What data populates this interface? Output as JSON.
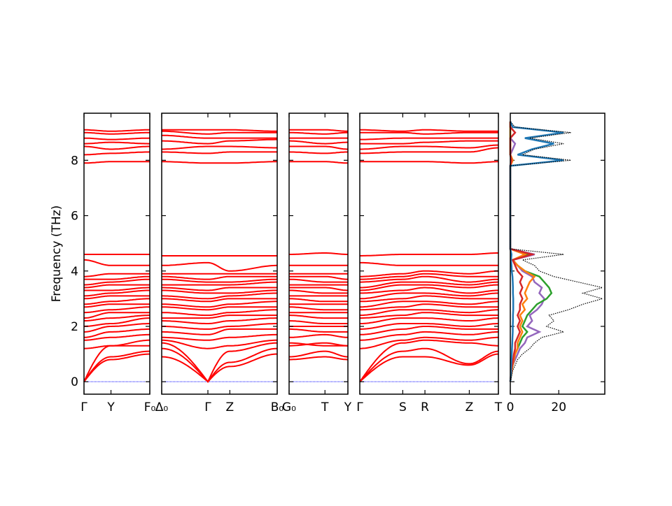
{
  "chart_data": {
    "type": "line",
    "title": "",
    "ylabel": "Frequency (THz)",
    "ylim": [
      -0.45,
      9.7
    ],
    "yticks": [
      0,
      2,
      4,
      6,
      8
    ],
    "colors": {
      "band": "#ff0000",
      "zero_line": "#0000ff",
      "dos_total": "#000000",
      "dos_series": [
        "#1f77b4",
        "#ff7f0e",
        "#2ca02c",
        "#d62728",
        "#9467bd"
      ]
    },
    "segments": [
      {
        "labels": [
          "Γ",
          "Y",
          "F₀"
        ],
        "positions": [
          0,
          0.41,
          1
        ]
      },
      {
        "labels": [
          "Δ₀",
          "Γ",
          "Z",
          "B₀"
        ],
        "positions": [
          0,
          0.4,
          0.59,
          1
        ]
      },
      {
        "labels": [
          "G₀",
          "T",
          "Y"
        ],
        "positions": [
          0,
          0.61,
          1
        ]
      },
      {
        "labels": [
          "Γ",
          "S",
          "R",
          "Z",
          "T"
        ],
        "positions": [
          0,
          0.31,
          0.47,
          0.79,
          1
        ]
      }
    ],
    "bands_note": "frequency (THz) at each high-symmetry point, in order Γ,Y,F₀ | Δ₀,Γ,Z,B₀ | G₀,T,Y | Γ,S,R,Z,T",
    "bands": [
      [
        0,
        0.8,
        1.0,
        0.9,
        0,
        0.55,
        1.0,
        0.8,
        0.9,
        0.8,
        0,
        0.9,
        0.9,
        0.6,
        1.0
      ],
      [
        0,
        0.9,
        1.1,
        1.2,
        0,
        0.7,
        1.2,
        0.9,
        1.1,
        0.9,
        0,
        1.1,
        1.2,
        0.65,
        1.1
      ],
      [
        0,
        1.3,
        1.3,
        1.4,
        0,
        1.1,
        1.4,
        1.3,
        1.4,
        1.3,
        0,
        1.4,
        1.5,
        1.4,
        1.3
      ],
      [
        1.2,
        1.3,
        1.5,
        1.5,
        1.2,
        1.3,
        1.5,
        1.4,
        1.3,
        1.3,
        1.2,
        1.5,
        1.6,
        1.5,
        1.6
      ],
      [
        1.5,
        1.6,
        1.7,
        1.6,
        1.5,
        1.6,
        1.7,
        1.6,
        1.7,
        1.6,
        1.5,
        1.7,
        1.8,
        1.7,
        1.8
      ],
      [
        1.6,
        1.8,
        1.9,
        1.8,
        1.7,
        1.9,
        1.9,
        1.9,
        1.8,
        1.8,
        1.7,
        1.9,
        2.0,
        1.9,
        1.9
      ],
      [
        1.8,
        2.0,
        2.1,
        2.0,
        1.9,
        2.0,
        2.1,
        2.0,
        2.0,
        2.0,
        1.9,
        2.1,
        2.1,
        2.0,
        2.1
      ],
      [
        2.0,
        2.1,
        2.3,
        2.2,
        2.1,
        2.2,
        2.3,
        2.2,
        2.1,
        2.1,
        2.1,
        2.3,
        2.3,
        2.2,
        2.3
      ],
      [
        2.2,
        2.3,
        2.4,
        2.3,
        2.3,
        2.4,
        2.4,
        2.4,
        2.3,
        2.3,
        2.3,
        2.4,
        2.5,
        2.4,
        2.4
      ],
      [
        2.3,
        2.5,
        2.5,
        2.5,
        2.4,
        2.5,
        2.6,
        2.5,
        2.5,
        2.5,
        2.4,
        2.6,
        2.6,
        2.5,
        2.6
      ],
      [
        2.5,
        2.6,
        2.7,
        2.7,
        2.6,
        2.7,
        2.7,
        2.7,
        2.6,
        2.6,
        2.6,
        2.7,
        2.8,
        2.7,
        2.7
      ],
      [
        2.7,
        2.8,
        2.8,
        2.8,
        2.7,
        2.8,
        2.9,
        2.8,
        2.8,
        2.8,
        2.7,
        2.9,
        2.9,
        2.8,
        2.9
      ],
      [
        2.8,
        2.9,
        3.0,
        3.0,
        2.9,
        3.0,
        3.0,
        3.0,
        2.9,
        2.9,
        2.9,
        3.0,
        3.1,
        3.0,
        3.0
      ],
      [
        3.0,
        3.1,
        3.1,
        3.1,
        3.0,
        3.1,
        3.2,
        3.1,
        3.1,
        3.1,
        3.0,
        3.2,
        3.2,
        3.1,
        3.2
      ],
      [
        3.1,
        3.2,
        3.3,
        3.3,
        3.2,
        3.2,
        3.3,
        3.3,
        3.2,
        3.2,
        3.2,
        3.3,
        3.4,
        3.2,
        3.3
      ],
      [
        3.3,
        3.3,
        3.4,
        3.4,
        3.3,
        3.4,
        3.4,
        3.4,
        3.4,
        3.3,
        3.3,
        3.5,
        3.5,
        3.4,
        3.5
      ],
      [
        3.4,
        3.5,
        3.5,
        3.5,
        3.5,
        3.5,
        3.6,
        3.5,
        3.5,
        3.5,
        3.4,
        3.6,
        3.6,
        3.5,
        3.6
      ],
      [
        3.5,
        3.6,
        3.7,
        3.7,
        3.6,
        3.6,
        3.7,
        3.7,
        3.6,
        3.6,
        3.6,
        3.7,
        3.8,
        3.6,
        3.7
      ],
      [
        3.7,
        3.7,
        3.8,
        3.8,
        3.7,
        3.8,
        3.8,
        3.8,
        3.8,
        3.7,
        3.7,
        3.8,
        3.9,
        3.8,
        3.8
      ],
      [
        3.8,
        3.9,
        3.9,
        3.9,
        3.9,
        3.9,
        3.9,
        3.9,
        3.9,
        3.9,
        3.8,
        3.9,
        4.0,
        3.9,
        4.0
      ],
      [
        4.4,
        4.2,
        4.2,
        4.2,
        4.3,
        4.0,
        4.2,
        4.2,
        4.2,
        4.2,
        4.3,
        4.2,
        4.2,
        4.2,
        4.2
      ],
      [
        4.6,
        4.6,
        4.6,
        4.55,
        4.55,
        4.55,
        4.55,
        4.6,
        4.65,
        4.6,
        4.55,
        4.6,
        4.6,
        4.6,
        4.65
      ],
      [
        7.9,
        7.95,
        7.95,
        7.95,
        7.9,
        7.9,
        7.95,
        7.95,
        7.95,
        7.9,
        7.95,
        7.95,
        7.95,
        7.9,
        7.95
      ],
      [
        8.2,
        8.25,
        8.3,
        8.3,
        8.25,
        8.3,
        8.3,
        8.3,
        8.25,
        8.3,
        8.25,
        8.3,
        8.3,
        8.3,
        8.45
      ],
      [
        8.5,
        8.4,
        8.5,
        8.4,
        8.5,
        8.5,
        8.45,
        8.5,
        8.5,
        8.4,
        8.4,
        8.5,
        8.5,
        8.45,
        8.55
      ],
      [
        8.6,
        8.65,
        8.6,
        8.7,
        8.6,
        8.7,
        8.75,
        8.7,
        8.6,
        8.65,
        8.6,
        8.6,
        8.65,
        8.7,
        8.7
      ],
      [
        8.8,
        8.75,
        8.8,
        8.9,
        8.8,
        8.8,
        8.8,
        8.8,
        8.8,
        8.8,
        8.75,
        8.8,
        8.8,
        8.8,
        8.8
      ],
      [
        9.0,
        8.95,
        9.0,
        9.05,
        8.95,
        9.0,
        9.0,
        9.0,
        8.95,
        9.0,
        9.0,
        9.0,
        8.95,
        9.0,
        9.0
      ],
      [
        9.1,
        9.05,
        9.1,
        9.1,
        9.1,
        9.1,
        9.05,
        9.1,
        9.1,
        9.05,
        9.1,
        9.05,
        9.1,
        9.05,
        9.05
      ]
    ],
    "dos": {
      "xlim": [
        0,
        39
      ],
      "xticks": [
        0,
        20
      ],
      "freq_step": 0.2,
      "total": [
        0,
        0.5,
        1,
        2,
        3,
        5,
        8,
        10,
        13,
        22,
        15,
        18,
        16,
        24,
        30,
        38,
        30,
        38,
        28,
        18,
        12,
        10,
        5,
        22,
        0,
        0,
        0,
        0,
        0,
        0,
        0,
        0,
        0,
        0,
        0,
        0,
        0,
        0,
        0,
        0,
        25,
        5,
        10,
        22,
        8,
        25,
        2,
        0
      ],
      "series": [
        [
          0,
          0.2,
          0.3,
          0.4,
          0.5,
          0.6,
          0.7,
          0.8,
          0.9,
          1,
          1,
          1.1,
          1.1,
          1.2,
          1.2,
          1.2,
          1.1,
          1.1,
          1,
          0.9,
          0.6,
          0.5,
          0.3,
          0.5,
          0,
          0,
          0,
          0,
          0,
          0,
          0,
          0,
          0,
          0,
          0,
          0,
          0,
          0,
          0,
          0,
          22,
          3,
          9,
          18,
          6,
          22,
          1,
          0
        ],
        [
          0,
          0.3,
          0.6,
          1,
          1.5,
          2,
          3,
          3,
          4,
          5,
          4,
          5,
          4,
          6,
          5,
          7,
          6,
          7,
          8,
          10,
          6,
          3,
          1,
          6,
          0,
          0,
          0,
          0,
          0,
          0,
          0,
          0,
          0,
          0,
          0,
          0,
          0,
          0,
          0,
          0,
          1,
          0,
          0,
          0,
          0,
          0,
          0,
          0
        ],
        [
          0,
          0.3,
          0.6,
          1,
          1.5,
          2,
          3,
          4,
          5,
          7,
          5,
          6,
          7,
          9,
          11,
          15,
          17,
          16,
          14,
          12,
          6,
          3,
          1,
          8,
          0,
          0,
          0,
          0,
          0,
          0,
          0,
          0,
          0,
          0,
          0,
          0,
          0,
          0,
          0,
          0,
          1,
          0,
          0,
          0,
          0,
          0,
          0,
          0
        ],
        [
          0,
          0.2,
          0.4,
          0.8,
          1.2,
          1.5,
          2,
          2,
          3,
          4,
          3,
          4,
          3,
          4,
          4,
          5,
          4,
          5,
          4,
          5,
          3,
          2,
          1,
          9,
          0,
          0,
          0,
          0,
          0,
          0,
          0,
          0,
          0,
          0,
          0,
          0,
          0,
          0,
          0,
          0,
          0.5,
          0,
          0,
          0,
          0,
          2,
          0,
          0
        ],
        [
          0,
          0.3,
          0.6,
          1,
          2,
          3,
          4,
          6,
          7,
          12,
          7,
          9,
          8,
          11,
          13,
          14,
          12,
          13,
          10,
          9,
          5,
          3,
          1,
          10,
          0,
          0,
          0,
          0,
          0,
          0,
          0,
          0,
          0,
          0,
          0,
          0,
          0,
          0,
          0,
          0,
          0.5,
          0,
          1,
          2,
          0,
          2,
          0,
          0
        ]
      ]
    }
  }
}
